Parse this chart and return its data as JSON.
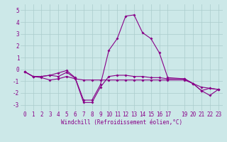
{
  "xlabel": "Windchill (Refroidissement éolien,°C)",
  "bg_color": "#cce8e8",
  "grid_color": "#aacccc",
  "line_color": "#880088",
  "x_ticks": [
    0,
    1,
    2,
    3,
    4,
    5,
    6,
    7,
    8,
    9,
    10,
    11,
    12,
    13,
    14,
    15,
    16,
    17,
    19,
    20,
    21,
    22,
    23
  ],
  "ylim": [
    -3.5,
    5.5
  ],
  "xlim": [
    -0.5,
    23.5
  ],
  "series1_x": [
    0,
    1,
    2,
    3,
    4,
    5,
    6,
    7,
    8,
    9,
    10,
    11,
    12,
    13,
    14,
    15,
    16,
    17,
    19,
    20,
    21,
    22,
    23
  ],
  "series1_y": [
    -0.2,
    -0.6,
    -0.6,
    -0.5,
    -0.6,
    -0.25,
    -0.75,
    -2.8,
    -2.8,
    -1.5,
    -0.6,
    -0.5,
    -0.5,
    -0.6,
    -0.6,
    -0.7,
    -0.7,
    -0.8,
    -0.8,
    -1.2,
    -1.8,
    -1.6,
    -1.7
  ],
  "series2_x": [
    0,
    1,
    2,
    3,
    4,
    5,
    6,
    7,
    8,
    9,
    10,
    11,
    12,
    13,
    14,
    15,
    16,
    17,
    19,
    20,
    21,
    22,
    23
  ],
  "series2_y": [
    -0.2,
    -0.6,
    -0.6,
    -0.5,
    -0.3,
    -0.1,
    -0.7,
    -2.6,
    -2.6,
    -1.3,
    1.6,
    2.6,
    4.5,
    4.6,
    3.1,
    2.6,
    1.4,
    -0.7,
    -0.8,
    -1.2,
    -1.8,
    -2.2,
    -1.7
  ],
  "series3_x": [
    0,
    1,
    2,
    3,
    4,
    5,
    6,
    7,
    8,
    9,
    10,
    11,
    12,
    13,
    14,
    15,
    16,
    17,
    19,
    20,
    21,
    22,
    23
  ],
  "series3_y": [
    -0.2,
    -0.6,
    -0.7,
    -0.9,
    -0.8,
    -0.6,
    -0.8,
    -0.9,
    -0.9,
    -0.9,
    -0.9,
    -0.9,
    -0.9,
    -0.9,
    -0.9,
    -0.9,
    -0.9,
    -0.9,
    -0.9,
    -1.2,
    -1.5,
    -1.6,
    -1.7
  ],
  "yticks": [
    -3,
    -2,
    -1,
    0,
    1,
    2,
    3,
    4,
    5
  ],
  "fontsize_tick": 5.5,
  "fontsize_xlabel": 5.5,
  "linewidth": 0.8,
  "markersize": 2.0
}
